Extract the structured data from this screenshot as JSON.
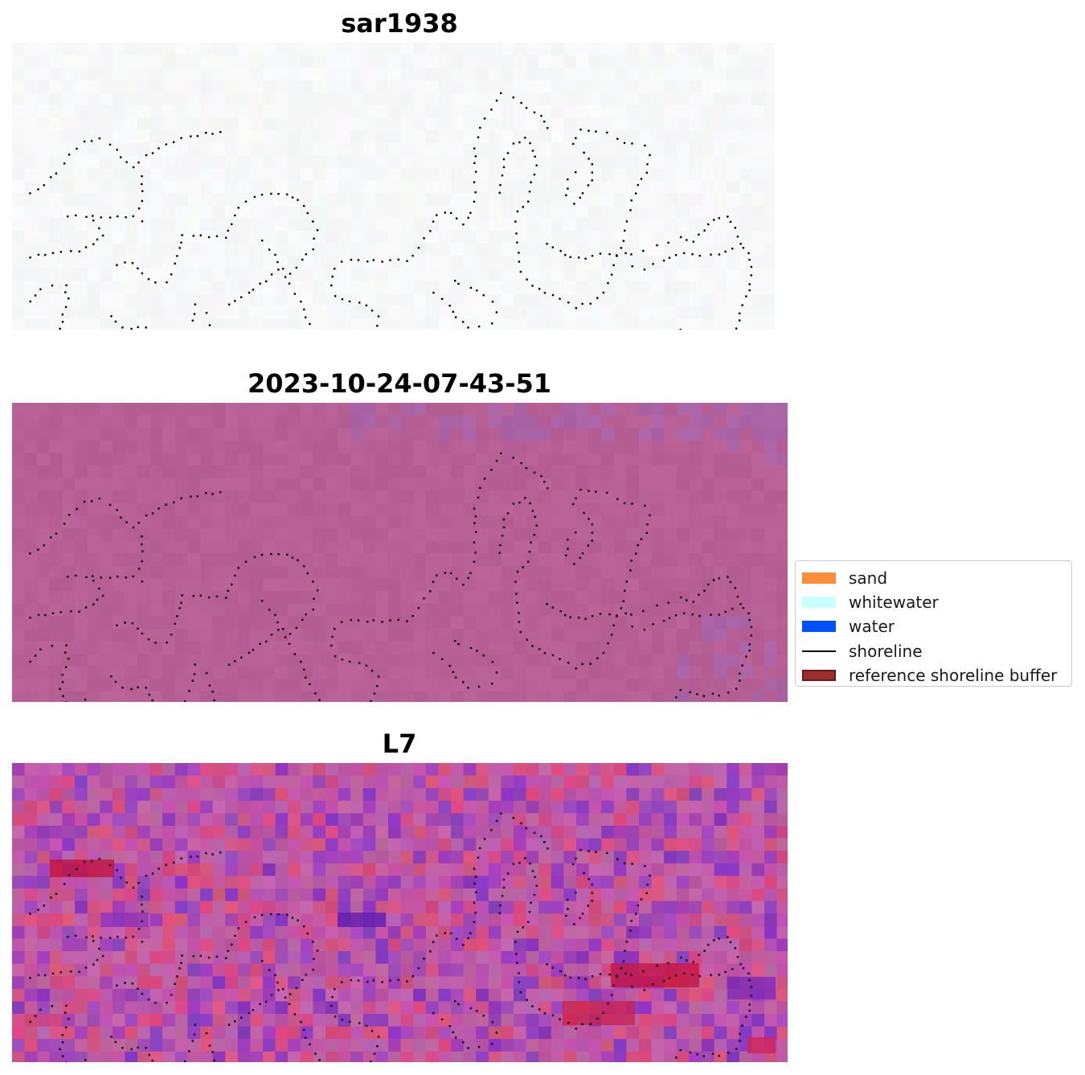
{
  "panels": [
    {
      "title": "sar1938",
      "scheme": "pale"
    },
    {
      "title": "2023-10-24-07-43-51",
      "scheme": "mauve"
    },
    {
      "title": "L7",
      "scheme": "vivid"
    }
  ],
  "legend": {
    "items": [
      {
        "label": "sand",
        "kind": "patch",
        "color": "#ff8c3a"
      },
      {
        "label": "whitewater",
        "kind": "patch",
        "color": "#c8ffff"
      },
      {
        "label": "water",
        "kind": "patch",
        "color": "#0050ff"
      },
      {
        "label": "shoreline",
        "kind": "line",
        "color": "#000000"
      },
      {
        "label": "reference shoreline buffer",
        "kind": "patch",
        "color": "#9b2f2f",
        "edge": "#6a1a1a"
      }
    ]
  }
}
